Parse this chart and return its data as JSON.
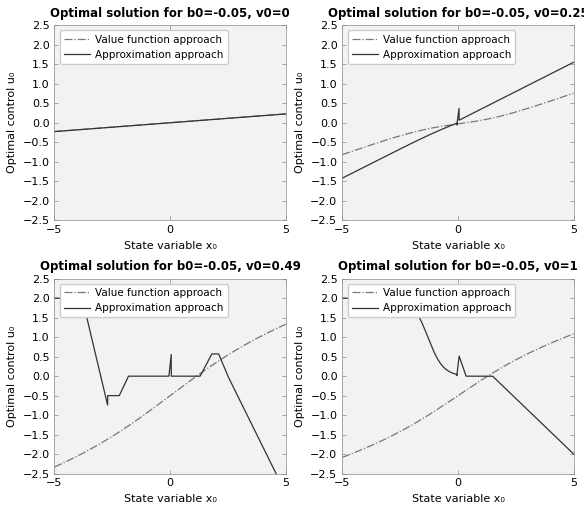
{
  "titles": [
    "Optimal solution for b0=-0.05, v0=0",
    "Optimal solution for b0=-0.05, v0=0.25",
    "Optimal solution for b0=-0.05, v0=0.49",
    "Optimal solution for b0=-0.05, v0=1"
  ],
  "xlabel": "State variable x₀",
  "ylabel": "Optimal control u₀",
  "xlim": [
    -5,
    5
  ],
  "ylim": [
    -2.5,
    2.5
  ],
  "legend_labels": [
    "Value function approach",
    "Approximation approach"
  ],
  "vf_color": "#777777",
  "approx_color": "#333333",
  "title_fontsize": 8.5,
  "label_fontsize": 8,
  "tick_fontsize": 8,
  "legend_fontsize": 7.5
}
